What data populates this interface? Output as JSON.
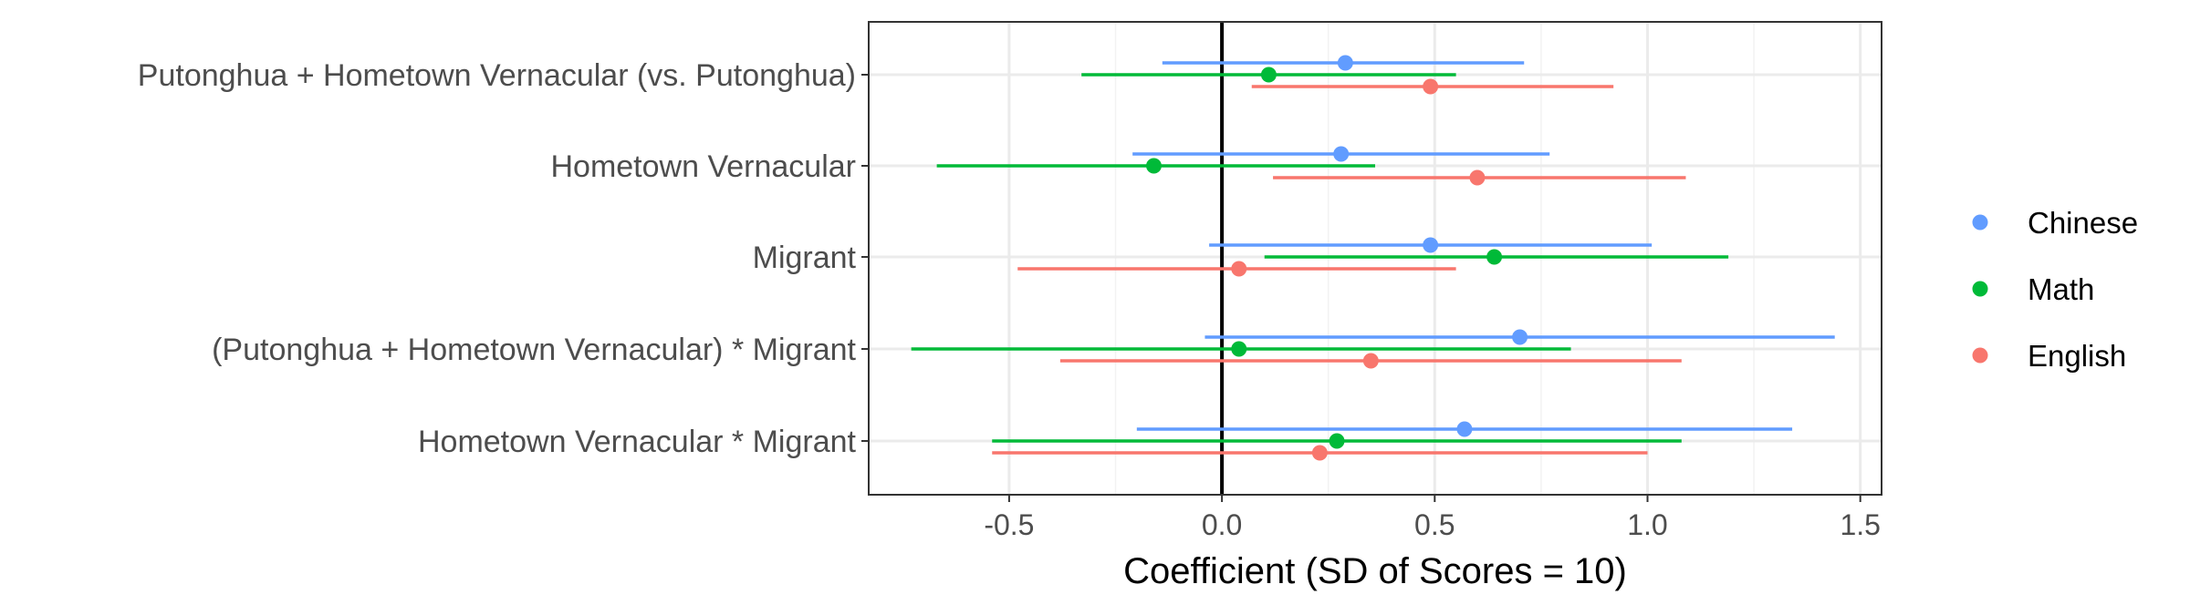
{
  "chart_data": {
    "type": "scatter",
    "subtype": "coefficient-plot-with-confidence-intervals",
    "title": "",
    "xlabel": "Coefficient (SD of Scores = 10)",
    "ylabel": "",
    "xlim": [
      -0.83,
      1.55
    ],
    "xticks": [
      -0.5,
      0.0,
      0.5,
      1.0,
      1.5
    ],
    "xtick_labels": [
      "-0.5",
      "0.0",
      "0.5",
      "1.0",
      "1.5"
    ],
    "zero_line": 0,
    "grid": true,
    "legend_position": "right",
    "categories": [
      "Putonghua + Hometown Vernacular (vs. Putonghua)",
      "Hometown Vernacular",
      "Migrant",
      "(Putonghua + Hometown Vernacular) * Migrant",
      "Hometown Vernacular * Migrant"
    ],
    "series": [
      {
        "name": "Chinese",
        "color": "#619CFF",
        "estimates": [
          0.29,
          0.28,
          0.49,
          0.7,
          0.57
        ],
        "lower": [
          -0.14,
          -0.21,
          -0.03,
          -0.04,
          -0.2
        ],
        "upper": [
          0.71,
          0.77,
          1.01,
          1.44,
          1.34
        ]
      },
      {
        "name": "Math",
        "color": "#00BA38",
        "estimates": [
          0.11,
          -0.16,
          0.64,
          0.04,
          0.27
        ],
        "lower": [
          -0.33,
          -0.67,
          0.1,
          -0.73,
          -0.54
        ],
        "upper": [
          0.55,
          0.36,
          1.19,
          0.82,
          1.08
        ]
      },
      {
        "name": "English",
        "color": "#F8766D",
        "estimates": [
          0.49,
          0.6,
          0.04,
          0.35,
          0.23
        ],
        "lower": [
          0.07,
          0.12,
          -0.48,
          -0.38,
          -0.54
        ],
        "upper": [
          0.92,
          1.09,
          0.55,
          1.08,
          1.0
        ]
      }
    ]
  }
}
